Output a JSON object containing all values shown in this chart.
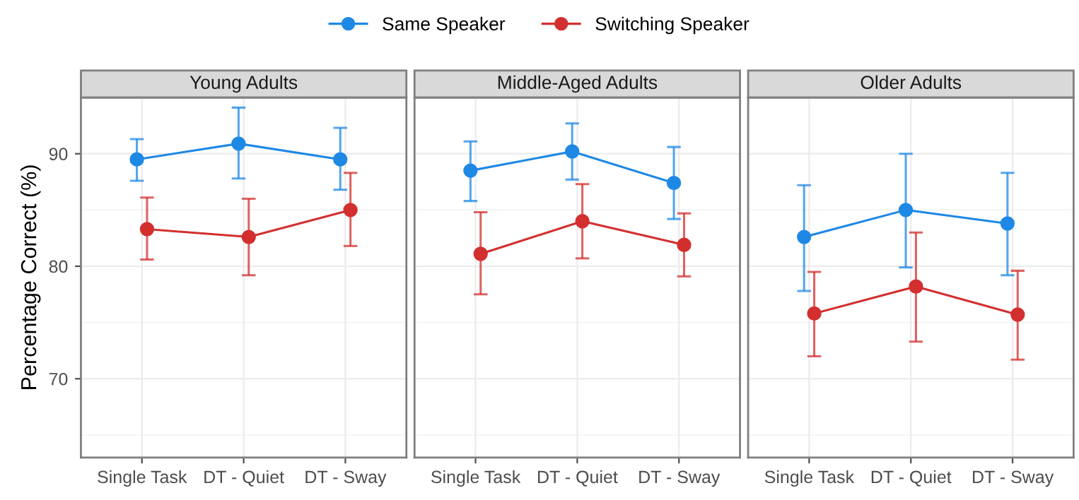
{
  "chart_data": [
    {
      "type": "line",
      "title": "Young Adults",
      "ylabel": "Percentage Correct (%)",
      "categories": [
        "Single Task",
        "DT - Quiet",
        "DT - Sway"
      ],
      "ylim": [
        63,
        95
      ],
      "yticks": [
        70,
        80,
        90
      ],
      "grid": true,
      "legend": "top",
      "marker": "circle",
      "line_style": "solid",
      "series": [
        {
          "name": "Same Speaker",
          "color": "#1e88e5",
          "values": [
            89.5,
            90.9,
            89.5
          ],
          "errors": [
            [
              87.6,
              91.3
            ],
            [
              87.8,
              94.1
            ],
            [
              86.8,
              92.3
            ]
          ]
        },
        {
          "name": "Switching Speaker",
          "color": "#d32f2f",
          "values": [
            83.3,
            82.6,
            85.0
          ],
          "errors": [
            [
              80.6,
              86.1
            ],
            [
              79.2,
              86.0
            ],
            [
              81.8,
              88.3
            ]
          ]
        }
      ]
    },
    {
      "type": "line",
      "title": "Middle-Aged Adults",
      "categories": [
        "Single Task",
        "DT - Quiet",
        "DT - Sway"
      ],
      "ylim": [
        63,
        95
      ],
      "yticks": [
        70,
        80,
        90
      ],
      "tick_labels": "x",
      "grid": true,
      "marker": "circle",
      "line_style": "solid",
      "series": [
        {
          "color": "#1e88e5",
          "values": [
            88.5,
            90.2,
            87.4
          ],
          "errors": [
            [
              85.8,
              91.1
            ],
            [
              87.7,
              92.7
            ],
            [
              84.2,
              90.6
            ]
          ]
        },
        {
          "color": "#d32f2f",
          "values": [
            81.1,
            84.0,
            81.9
          ],
          "errors": [
            [
              77.5,
              84.8
            ],
            [
              80.7,
              87.3
            ],
            [
              79.1,
              84.7
            ]
          ]
        }
      ]
    },
    {
      "type": "line",
      "title": "Older Adults",
      "categories": [
        "Single Task",
        "DT - Quiet",
        "DT - Sway"
      ],
      "ylim": [
        63,
        95
      ],
      "yticks": [
        70,
        80,
        90
      ],
      "tick_labels": "x",
      "grid": true,
      "marker": "circle",
      "line_style": "solid",
      "series": [
        {
          "color": "#1e88e5",
          "values": [
            82.6,
            85.0,
            83.8
          ],
          "errors": [
            [
              77.8,
              87.2
            ],
            [
              79.9,
              90.0
            ],
            [
              79.2,
              88.3
            ]
          ]
        },
        {
          "color": "#d32f2f",
          "values": [
            75.8,
            78.2,
            75.7
          ],
          "errors": [
            [
              72.0,
              79.5
            ],
            [
              73.3,
              83.0
            ],
            [
              71.7,
              79.6
            ]
          ]
        }
      ]
    }
  ]
}
